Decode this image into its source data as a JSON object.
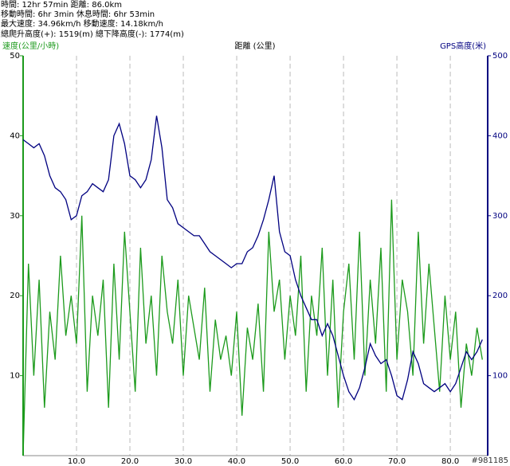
{
  "header": [
    "時間: 12hr 57min  距離: 86.0km",
    "移動時間: 6hr 3min  休息時間: 6hr 53min",
    "最大速度: 34.96km/h  移動速度: 14.18km/h",
    "總爬升高度(+): 1519(m)  總下降高度(-): 1774(m)"
  ],
  "chart_data": {
    "type": "line",
    "y_label": "速度(公里/小時)",
    "x_label": "距離 (公里)",
    "y2_label": "GPS高度(米)",
    "watermark": "#981185",
    "x": [
      0,
      1,
      2,
      3,
      4,
      5,
      6,
      7,
      8,
      9,
      10,
      11,
      12,
      13,
      14,
      15,
      16,
      17,
      18,
      19,
      20,
      21,
      22,
      23,
      24,
      25,
      26,
      27,
      28,
      29,
      30,
      31,
      32,
      33,
      34,
      35,
      36,
      37,
      38,
      39,
      40,
      41,
      42,
      43,
      44,
      45,
      46,
      47,
      48,
      49,
      50,
      51,
      52,
      53,
      54,
      55,
      56,
      57,
      58,
      59,
      60,
      61,
      62,
      63,
      64,
      65,
      66,
      67,
      68,
      69,
      70,
      71,
      72,
      73,
      74,
      75,
      76,
      77,
      78,
      79,
      80,
      81,
      82,
      83,
      84,
      85,
      86
    ],
    "series": [
      {
        "name": "速度(公里/小時)",
        "color": "#1c9a1c",
        "values": [
          0,
          24,
          10,
          22,
          6,
          18,
          12,
          25,
          15,
          20,
          14,
          30,
          8,
          20,
          15,
          22,
          6,
          24,
          12,
          28,
          18,
          8,
          26,
          14,
          20,
          10,
          25,
          18,
          14,
          22,
          10,
          20,
          16,
          12,
          21,
          8,
          17,
          12,
          15,
          10,
          18,
          5,
          16,
          12,
          19,
          8,
          28,
          18,
          22,
          12,
          20,
          15,
          25,
          8,
          20,
          15,
          26,
          10,
          22,
          6,
          18,
          24,
          12,
          28,
          10,
          22,
          14,
          26,
          8,
          32,
          12,
          22,
          18,
          10,
          28,
          14,
          24,
          16,
          8,
          20,
          12,
          18,
          6,
          14,
          10,
          16,
          12
        ]
      },
      {
        "name": "GPS高度(米)",
        "color": "#000080",
        "axis": "y2",
        "values": [
          395,
          390,
          385,
          390,
          375,
          350,
          335,
          330,
          320,
          295,
          300,
          325,
          330,
          340,
          335,
          330,
          345,
          400,
          415,
          390,
          350,
          345,
          335,
          345,
          370,
          425,
          385,
          320,
          310,
          290,
          285,
          280,
          275,
          275,
          265,
          255,
          250,
          245,
          240,
          235,
          240,
          240,
          255,
          260,
          275,
          295,
          320,
          350,
          280,
          255,
          250,
          220,
          200,
          185,
          170,
          170,
          150,
          165,
          150,
          125,
          100,
          80,
          70,
          85,
          110,
          140,
          125,
          115,
          120,
          100,
          75,
          70,
          95,
          130,
          115,
          90,
          85,
          80,
          85,
          90,
          80,
          90,
          110,
          130,
          120,
          130,
          145
        ]
      }
    ],
    "xlim": [
      0,
      87
    ],
    "xticks": [
      {
        "value": 10,
        "label": "10.0"
      },
      {
        "value": 20,
        "label": "20.0"
      },
      {
        "value": 30,
        "label": "30.0"
      },
      {
        "value": 40,
        "label": "40.0"
      },
      {
        "value": 50,
        "label": "50.0"
      },
      {
        "value": 60,
        "label": "60.0"
      },
      {
        "value": 70,
        "label": "70.0"
      },
      {
        "value": 80,
        "label": "80.0"
      }
    ],
    "ylim": [
      0,
      50
    ],
    "yticks": [
      10,
      20,
      30,
      40,
      50
    ],
    "y2lim": [
      0,
      500
    ],
    "y2ticks": [
      100,
      200,
      300,
      400,
      500
    ],
    "grid": true
  }
}
